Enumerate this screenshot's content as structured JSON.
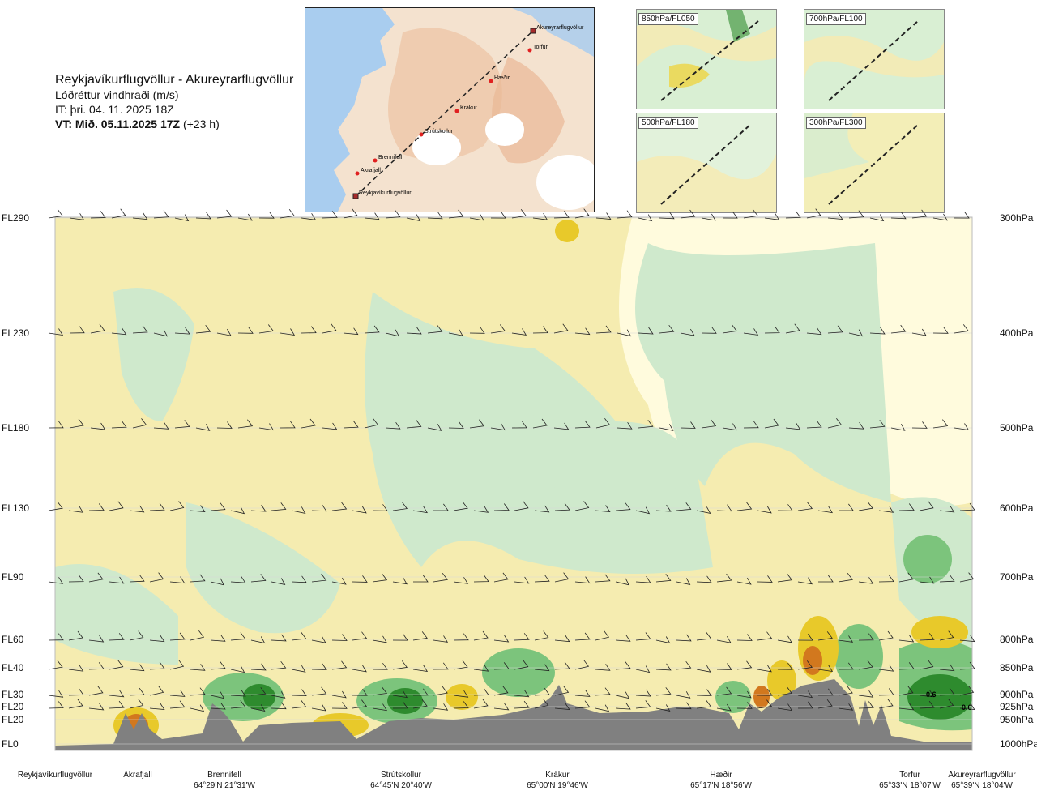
{
  "header": {
    "route": "Reykjavíkurflugvöllur - Akureyrarflugvöllur",
    "quantity": "Lóðréttur vindhraði (m/s)",
    "issue_time": "IT: þri. 04. 11. 2025 18Z",
    "valid_time_bold": "VT: Mið. 05.11.2025 17Z",
    "valid_time_lead": " (+23 h)"
  },
  "route_map": {
    "points": [
      "Akureyrarflugvöllur",
      "Torfur",
      "Hæðir",
      "Krákur",
      "Strútskollur",
      "Brennifell",
      "Akrafjall",
      "Reykjavíkurflugvöllur"
    ]
  },
  "level_maps": [
    {
      "label": "850hPa/FL050"
    },
    {
      "label": "700hPa/FL100"
    },
    {
      "label": "500hPa/FL180"
    },
    {
      "label": "300hPa/FL300"
    }
  ],
  "colors": {
    "terrain": "#808080",
    "up_strong": "#2e8b2e",
    "up_moderate": "#7cc47c",
    "up_weak": "#cfe9cc",
    "neutral": "#fffbdd",
    "down_weak": "#f6eca4",
    "down_moderate": "#e8c92a",
    "down_strong": "#d2781e",
    "water": "#9cc7ee",
    "land": "#f1d2b8"
  },
  "chart_data": {
    "type": "heatmap",
    "title": "Lóðréttur vindhraði (m/s)",
    "left_axis": [
      "FL290",
      "FL230",
      "FL180",
      "FL130",
      "FL90",
      "FL60",
      "FL40",
      "FL30",
      "FL20",
      "FL20",
      "FL0"
    ],
    "right_axis": [
      "300hPa",
      "400hPa",
      "500hPa",
      "600hPa",
      "700hPa",
      "800hPa",
      "850hPa",
      "900hPa",
      "925hPa",
      "950hPa",
      "1000hPa"
    ],
    "pressure_levels_hpa": [
      300,
      400,
      500,
      600,
      700,
      800,
      850,
      900,
      925,
      950,
      1000
    ],
    "stations": [
      {
        "name": "Reykjavíkurflugvöllur",
        "coord": ""
      },
      {
        "name": "Akrafjall",
        "coord": ""
      },
      {
        "name": "Brennifell",
        "coord": "64°29'N 21°31'W"
      },
      {
        "name": "Strútskollur",
        "coord": "64°45'N 20°40'W"
      },
      {
        "name": "Krákur",
        "coord": "65°00'N 19°46'W"
      },
      {
        "name": "Hæðir",
        "coord": "65°17'N 18°56'W"
      },
      {
        "name": "Torfur",
        "coord": "65°33'N 18°07'W"
      },
      {
        "name": "Akureyrarflugvöllur",
        "coord": "65°39'N 18°04'W"
      }
    ],
    "annotations": [
      "0.6",
      "0.6"
    ],
    "legend": "none"
  }
}
